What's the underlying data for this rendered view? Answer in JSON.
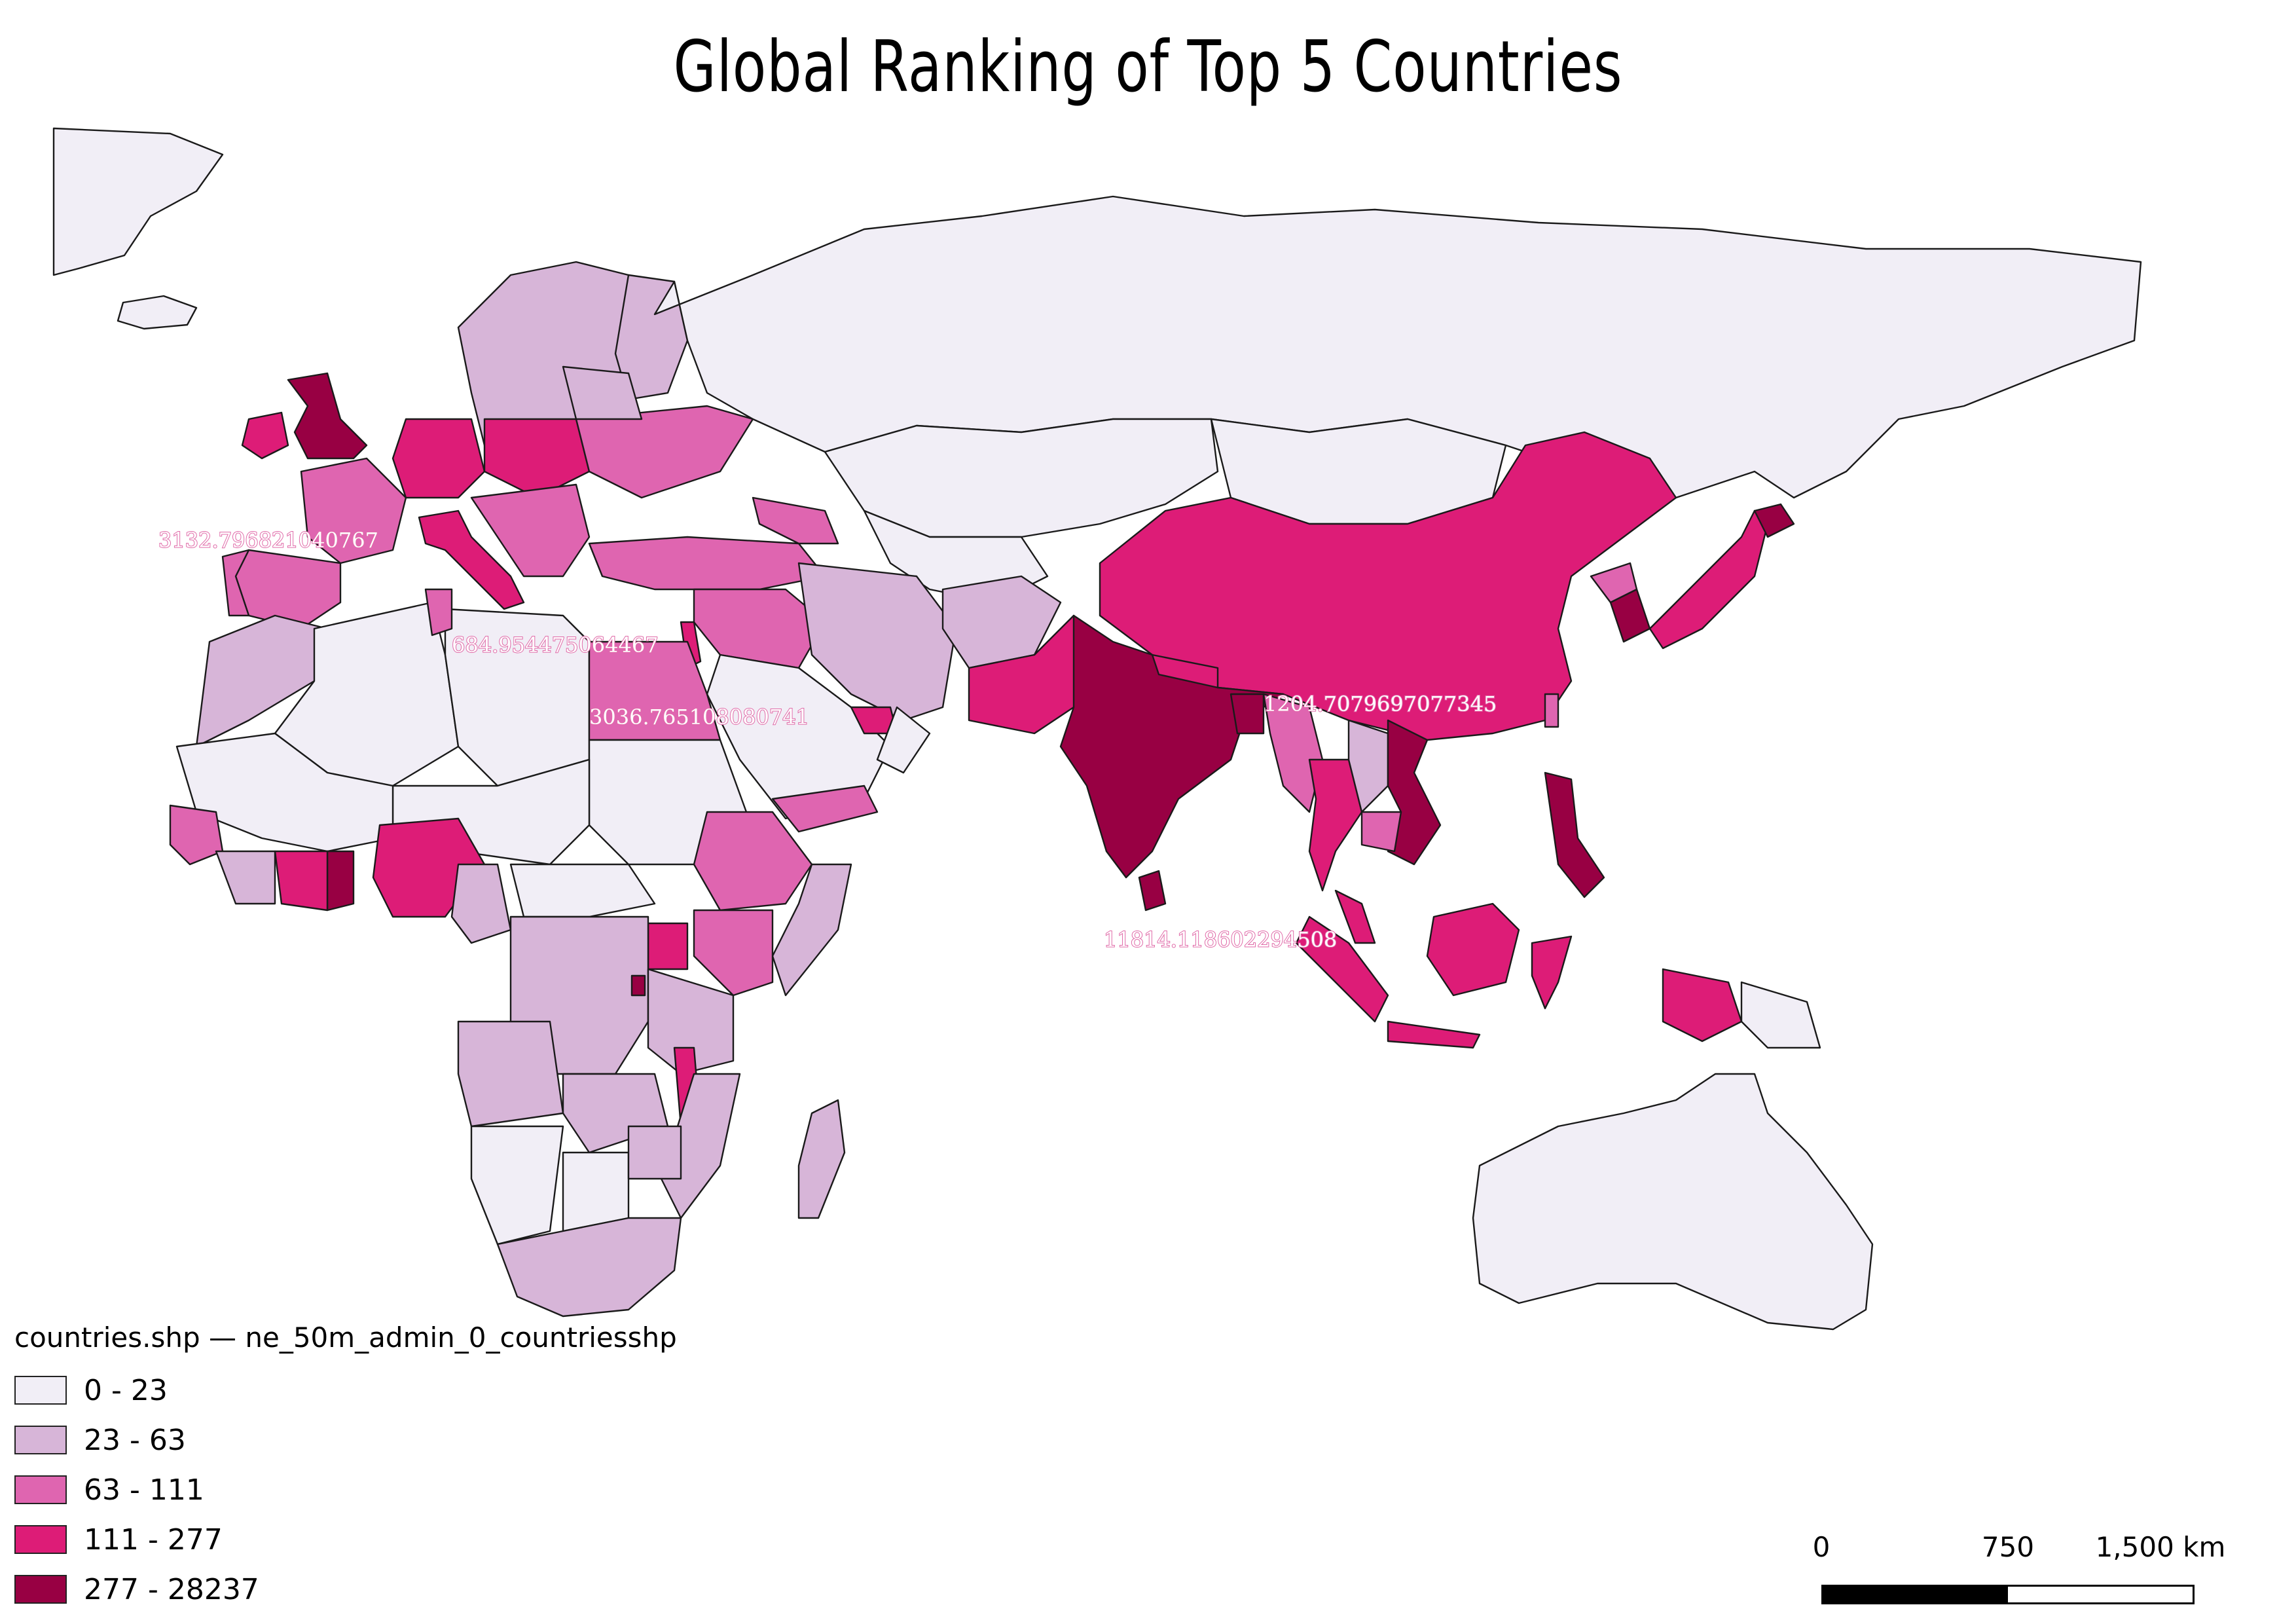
{
  "title": "Global Ranking of Top 5 Countries",
  "legend": {
    "title": "countries.shp — ne_50m_admin_0_countriesshp",
    "classes": [
      {
        "label": "0 - 23",
        "color": "#f1eef6"
      },
      {
        "label": "23 - 63",
        "color": "#d7b5d8"
      },
      {
        "label": "63 - 111",
        "color": "#df65b0"
      },
      {
        "label": "111 - 277",
        "color": "#dd1c77"
      },
      {
        "label": "277 - 28237",
        "color": "#980043"
      }
    ]
  },
  "labels": [
    {
      "text": "3132.796821040767",
      "near": "Spain"
    },
    {
      "text": "684.954475064467",
      "near": "Israel"
    },
    {
      "text": "3036.765108080741",
      "near": "Egypt"
    },
    {
      "text": "1204.7079697077345",
      "near": "Vietnam"
    },
    {
      "text": "11814.118602294508",
      "near": "India"
    }
  ],
  "scalebar": {
    "ticks": [
      "0",
      "750",
      "1,500 km"
    ]
  },
  "colors": {
    "border": "#1a1a1a",
    "label_halo": "#e06aa8",
    "background": "#ffffff"
  }
}
